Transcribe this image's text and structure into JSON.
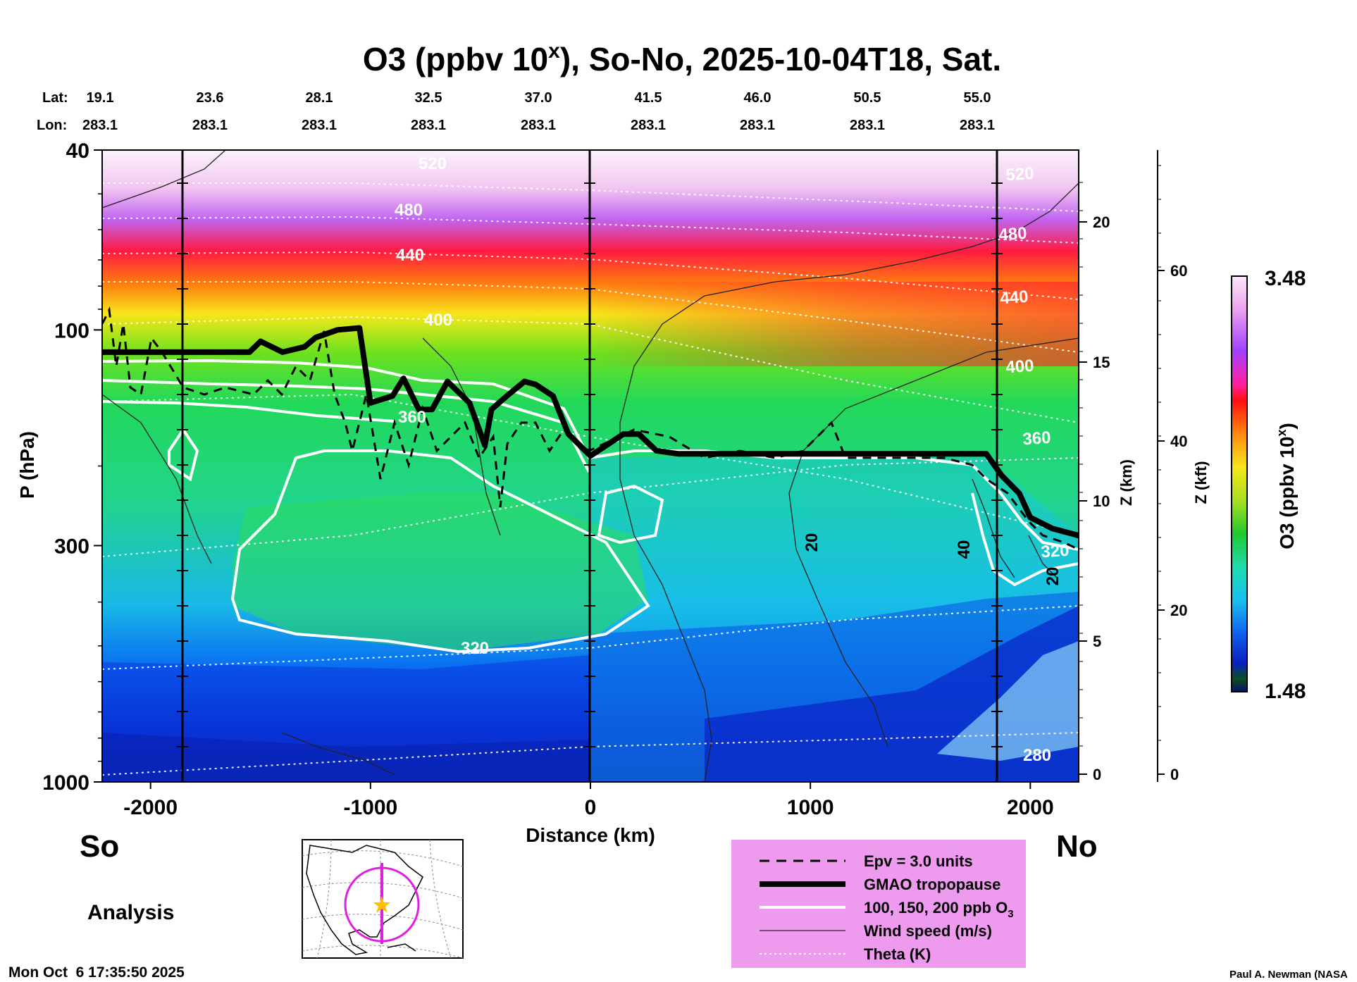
{
  "chart_data": {
    "type": "heatmap",
    "title_main": "O3 (ppbv 10",
    "title_sup": "x",
    "title_rest": "), So-No, 2025-10-04T18, Sat.",
    "header": {
      "lat_label": "Lat:",
      "lon_label": "Lon:",
      "lat": [
        "19.1",
        "23.6",
        "28.1",
        "32.5",
        "37.0",
        "41.5",
        "46.0",
        "50.5",
        "55.0"
      ],
      "lon": [
        "283.1",
        "283.1",
        "283.1",
        "283.1",
        "283.1",
        "283.1",
        "283.1",
        "283.1",
        "283.1"
      ]
    },
    "x_axis": {
      "label": "Distance (km)",
      "range": [
        -2220,
        2220
      ],
      "ticks": [
        "-2000",
        "-1000",
        "0",
        "1000",
        "2000"
      ]
    },
    "y_axis": {
      "label": "P (hPa)",
      "scale": "log",
      "range": [
        1000,
        40
      ],
      "ticks": [
        "40",
        "100",
        "300",
        "1000"
      ]
    },
    "z_km_axis": {
      "label": "Z (km)",
      "ticks": [
        "0",
        "5",
        "10",
        "15",
        "20"
      ]
    },
    "z_kft_axis": {
      "label": "Z (kft)",
      "ticks": [
        "0",
        "20",
        "40",
        "60"
      ]
    },
    "colorbar": {
      "label_main": "O3 (ppbv 10",
      "label_sup": "x",
      "label_rest": ")",
      "max": "3.48",
      "min": "1.48"
    },
    "theta_labels": [
      "520",
      "480",
      "440",
      "400",
      "360",
      "320",
      "280",
      "520",
      "480",
      "440",
      "400",
      "360",
      "320"
    ],
    "wind_labels": [
      "20",
      "40",
      "20"
    ],
    "ends": {
      "left": "So",
      "right": "No"
    },
    "analysis_label": "Analysis",
    "legend": [
      {
        "label": "Epv = 3.0 units",
        "style": "dashed"
      },
      {
        "label": "GMAO tropopause",
        "style": "thick"
      },
      {
        "label": "100, 150, 200 ppb O",
        "sub": "3",
        "style": "white"
      },
      {
        "label": "Wind speed (m/s)",
        "style": "thin"
      },
      {
        "label": "Theta (K)",
        "style": "dotted"
      }
    ],
    "series": [
      {
        "name": "GMAO tropopause",
        "x_km": [
          -2220,
          -1550,
          -1500,
          -1400,
          -1300,
          -1250,
          -1150,
          -1050,
          -1000,
          -900,
          -850,
          -780,
          -720,
          -650,
          -550,
          -480,
          -450,
          -380,
          -300,
          -250,
          -170,
          -100,
          0,
          150,
          220,
          300,
          400,
          1000,
          1600,
          1800,
          1870,
          1950,
          2000,
          2100,
          2220
        ],
        "p_hpa": [
          112,
          112,
          106,
          112,
          109,
          104,
          100,
          99,
          145,
          140,
          128,
          150,
          150,
          130,
          145,
          180,
          150,
          140,
          130,
          132,
          140,
          170,
          190,
          170,
          170,
          185,
          188,
          188,
          188,
          188,
          210,
          230,
          260,
          275,
          285
        ]
      }
    ],
    "grid": false,
    "legend_position": "bottom-right",
    "colors": {
      "tropopause": "#000000",
      "o3_contour": "#ffffff",
      "theta": "#ffffff",
      "wind": "#222222",
      "legend_bg": "#ee9aee",
      "track": "#e020e0",
      "star": "#ffc000"
    }
  },
  "footer": {
    "timestamp": "Mon Oct  6 17:35:50 2025",
    "credit": "Paul A. Newman (NASA"
  }
}
